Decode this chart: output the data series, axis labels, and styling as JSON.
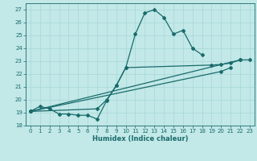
{
  "xlabel": "Humidex (Indice chaleur)",
  "xlim": [
    -0.5,
    23.5
  ],
  "ylim": [
    18,
    27.5
  ],
  "yticks": [
    18,
    19,
    20,
    21,
    22,
    23,
    24,
    25,
    26,
    27
  ],
  "xticks": [
    0,
    1,
    2,
    3,
    4,
    5,
    6,
    7,
    8,
    9,
    10,
    11,
    12,
    13,
    14,
    15,
    16,
    17,
    18,
    19,
    20,
    21,
    22,
    23
  ],
  "bg_color": "#c2e8e8",
  "line_color": "#1a6b6b",
  "markersize": 2.0,
  "linewidth": 0.9,
  "line1_x": [
    0,
    1,
    2,
    3,
    4,
    5,
    6,
    7,
    8,
    9,
    10,
    11,
    12,
    13,
    14,
    15,
    16,
    17,
    18
  ],
  "line1_y": [
    19.1,
    19.5,
    19.3,
    18.9,
    18.9,
    18.8,
    18.8,
    18.5,
    19.95,
    21.1,
    22.5,
    25.1,
    26.75,
    27.0,
    26.4,
    25.1,
    25.4,
    24.0,
    23.5
  ],
  "line2_x": [
    0,
    22,
    23
  ],
  "line2_y": [
    19.1,
    23.1,
    23.1
  ],
  "line3_x": [
    0,
    7,
    8,
    9,
    10,
    19,
    20,
    21,
    22
  ],
  "line3_y": [
    19.1,
    19.3,
    20.0,
    21.1,
    22.5,
    22.7,
    22.75,
    22.85,
    23.1
  ],
  "line4_x": [
    0,
    20,
    21
  ],
  "line4_y": [
    19.1,
    22.2,
    22.5
  ],
  "grid_color": "#a8d8d8",
  "tick_fontsize": 5.0,
  "xlabel_fontsize": 6.0
}
